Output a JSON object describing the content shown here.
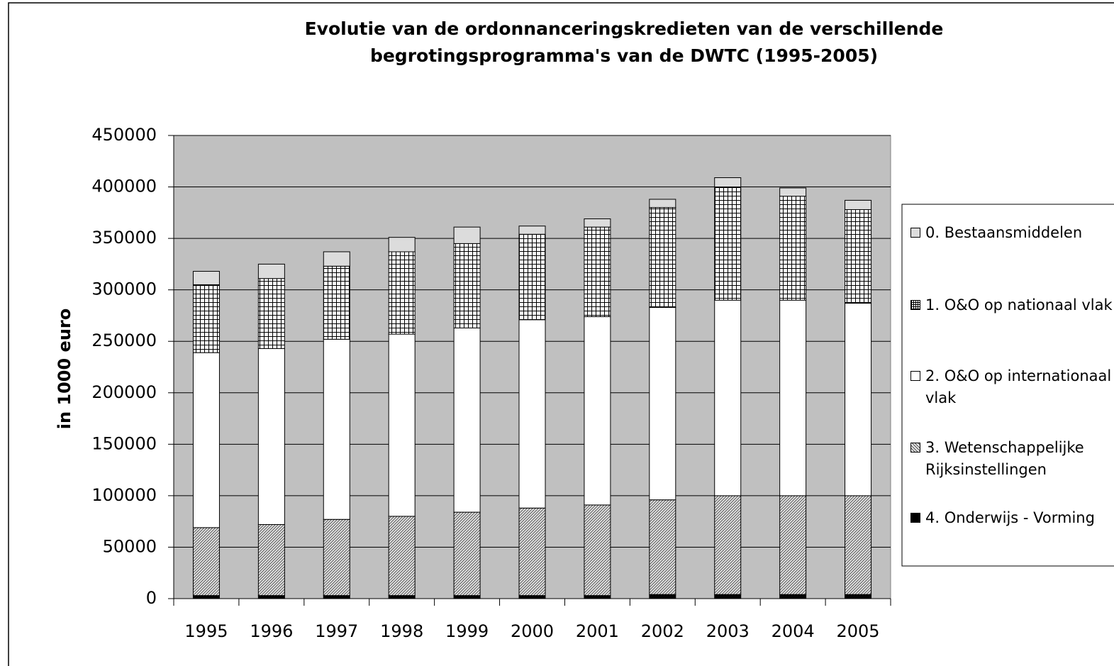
{
  "chart_data": {
    "type": "stacked_bar",
    "title": "Evolutie van de ordonnanceringskredieten van de verschillende begrotingsprogramma's van de DWTC (1995-2005)",
    "y_label": "in 1000 euro",
    "categories": [
      "1995",
      "1996",
      "1997",
      "1998",
      "1999",
      "2000",
      "2001",
      "2002",
      "2003",
      "2004",
      "2005"
    ],
    "series": [
      {
        "name": "0. Bestaansmiddelen",
        "color": "#dcdcdc",
        "pattern": "solid",
        "values": [
          13000,
          14000,
          14000,
          14000,
          16000,
          8000,
          8000,
          8000,
          9000,
          8000,
          9000
        ]
      },
      {
        "name": "1. O&O op nationaal vlak",
        "color": "#ffffff",
        "pattern": "grid",
        "values": [
          66000,
          68000,
          71000,
          80000,
          82000,
          83000,
          87000,
          97000,
          110000,
          101000,
          91000
        ]
      },
      {
        "name": "2. O&O op internationaal vlak",
        "color": "#ffffff",
        "pattern": "solid",
        "values": [
          170000,
          171000,
          175000,
          177000,
          179000,
          183000,
          183000,
          187000,
          190000,
          190000,
          187000
        ]
      },
      {
        "name": "3. Wetenschappelijke Rijksinstellingen",
        "color": "#c8c8c8",
        "pattern": "dots",
        "values": [
          66000,
          69000,
          74000,
          77000,
          81000,
          85000,
          88000,
          92000,
          96000,
          96000,
          96000
        ]
      },
      {
        "name": "4. Onderwijs - Vorming",
        "color": "#000000",
        "pattern": "solid",
        "values": [
          3000,
          3000,
          3000,
          3000,
          3000,
          3000,
          3000,
          4000,
          4000,
          4000,
          4000
        ]
      }
    ],
    "stack_order": "bottom_up_from_last",
    "ylim": [
      0,
      450000
    ],
    "yticks": [
      0,
      50000,
      100000,
      150000,
      200000,
      250000,
      300000,
      350000,
      400000,
      450000
    ],
    "grid": true,
    "plot_background": "#c0c0c0",
    "legend": "right"
  }
}
